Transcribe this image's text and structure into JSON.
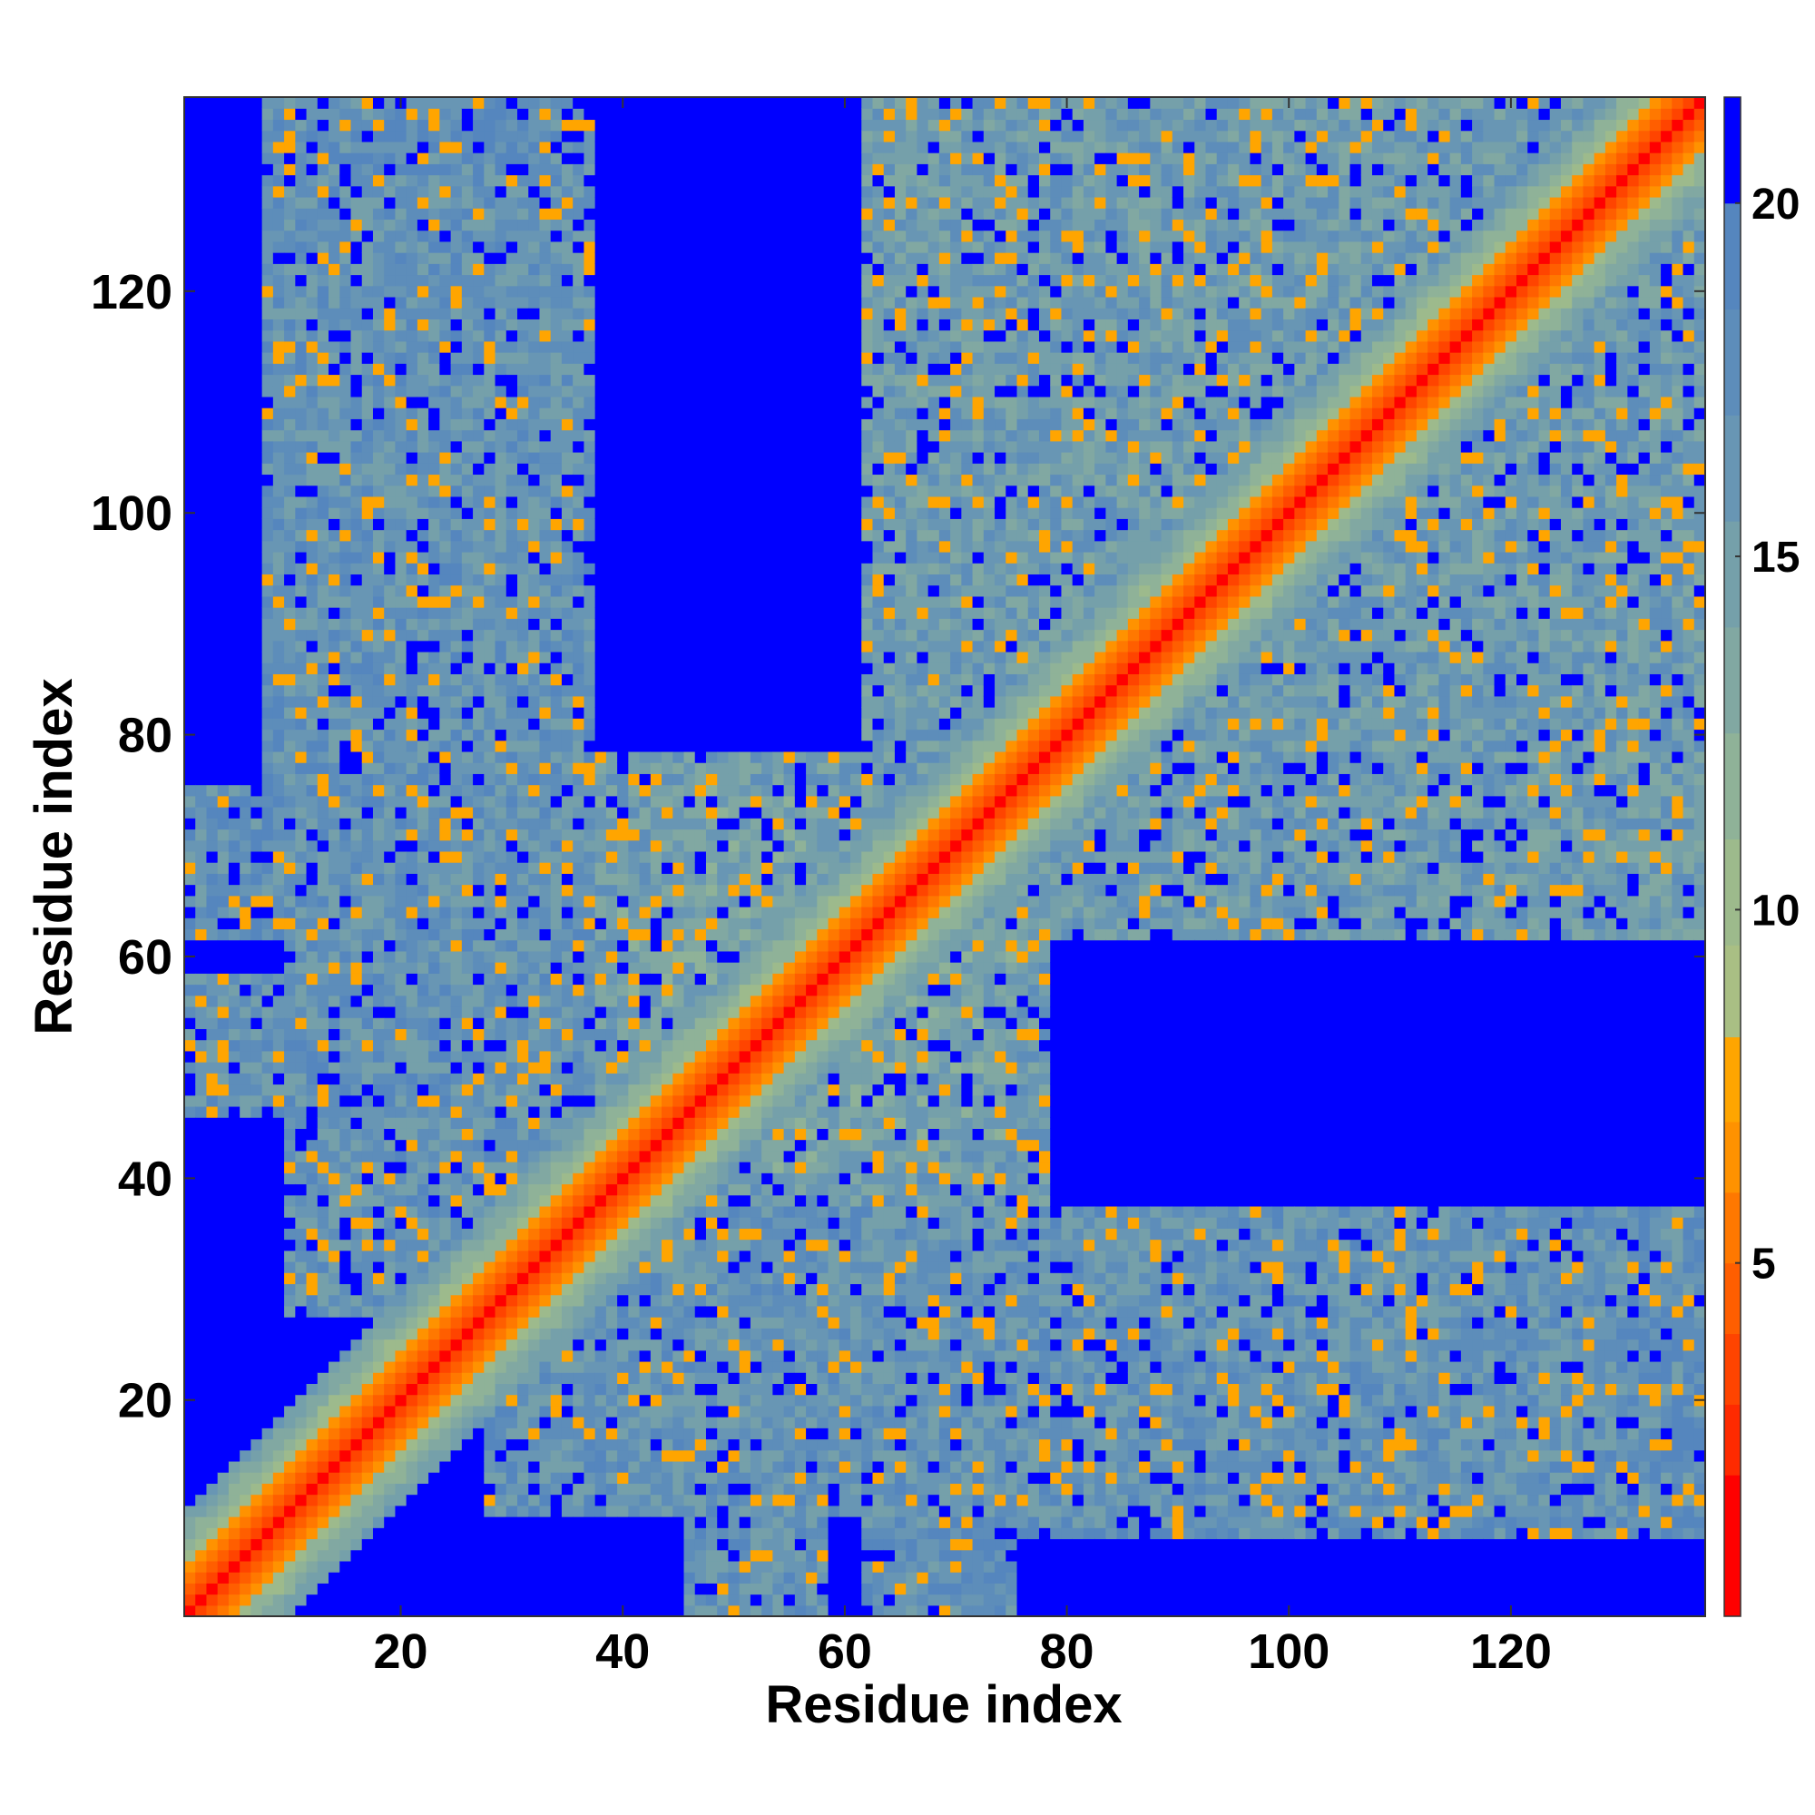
{
  "chart_data": {
    "type": "heatmap",
    "title": "",
    "xlabel": "Residue index",
    "ylabel": "Residue index",
    "n_residues": 137,
    "xlim": [
      1,
      137
    ],
    "ylim": [
      1,
      137
    ],
    "x_ticks": [
      20,
      40,
      60,
      80,
      100,
      120
    ],
    "y_ticks": [
      20,
      40,
      60,
      80,
      100,
      120
    ],
    "x_tick_labels": [
      "20",
      "40",
      "60",
      "80",
      "100",
      "120"
    ],
    "y_tick_labels": [
      "20",
      "40",
      "60",
      "80",
      "100",
      "120"
    ],
    "colorbar": {
      "range": [
        0,
        21.5
      ],
      "ticks": [
        5,
        10,
        15,
        20
      ],
      "tick_labels": [
        "5",
        "10",
        "15",
        "20"
      ],
      "levels": [
        {
          "min": 0.0,
          "max": 2.0,
          "color": "#ff0000"
        },
        {
          "min": 2.0,
          "max": 3.0,
          "color": "#ff2a00"
        },
        {
          "min": 3.0,
          "max": 4.0,
          "color": "#ff4400"
        },
        {
          "min": 4.0,
          "max": 5.0,
          "color": "#ff5e00"
        },
        {
          "min": 5.0,
          "max": 6.0,
          "color": "#ff7800"
        },
        {
          "min": 6.0,
          "max": 7.0,
          "color": "#ff9200"
        },
        {
          "min": 7.0,
          "max": 8.2,
          "color": "#ffa500"
        },
        {
          "min": 8.2,
          "max": 9.5,
          "color": "#a9bf84"
        },
        {
          "min": 9.5,
          "max": 11.0,
          "color": "#9dba8c"
        },
        {
          "min": 11.0,
          "max": 12.5,
          "color": "#8fb298"
        },
        {
          "min": 12.5,
          "max": 14.0,
          "color": "#81a8a2"
        },
        {
          "min": 14.0,
          "max": 15.5,
          "color": "#75a0aa"
        },
        {
          "min": 15.5,
          "max": 17.0,
          "color": "#6896b4"
        },
        {
          "min": 17.0,
          "max": 18.5,
          "color": "#5d8dba"
        },
        {
          "min": 18.5,
          "max": 20.0,
          "color": "#5586be"
        },
        {
          "min": 20.0,
          "max": 21.5,
          "color": "#0000ff"
        }
      ]
    },
    "background_value": 21.5,
    "description_of_pattern": {
      "diagonal_band": {
        "core_value": 1.5,
        "halfwidth_orange": 3,
        "halfwidth_green": 7
      },
      "contact_blobs": [
        {
          "x_range": [
            10,
            37
          ],
          "y_range": [
            28,
            130
          ],
          "typical_value": 16
        },
        {
          "x_range": [
            43,
            66
          ],
          "y_range": [
            40,
            75
          ],
          "typical_value": 14
        },
        {
          "x_range": [
            65,
            137
          ],
          "y_range": [
            62,
            137
          ],
          "typical_value": 15
        },
        {
          "x_range": [
            38,
            78
          ],
          "y_range": [
            20,
            75
          ],
          "typical_value": 15
        },
        {
          "x_range": [
            64,
            138
          ],
          "y_range": [
            8,
            37
          ],
          "typical_value": 17
        },
        {
          "x_range": [
            46,
            55
          ],
          "y_range": [
            1,
            13
          ],
          "typical_value": 16
        },
        {
          "x_range": [
            64,
            74
          ],
          "y_range": [
            1,
            11
          ],
          "typical_value": 17
        },
        {
          "x_range": [
            1,
            14
          ],
          "y_range": [
            47,
            58
          ],
          "typical_value": 16
        },
        {
          "x_range": [
            1,
            10
          ],
          "y_range": [
            62,
            75
          ],
          "typical_value": 17
        }
      ]
    }
  }
}
